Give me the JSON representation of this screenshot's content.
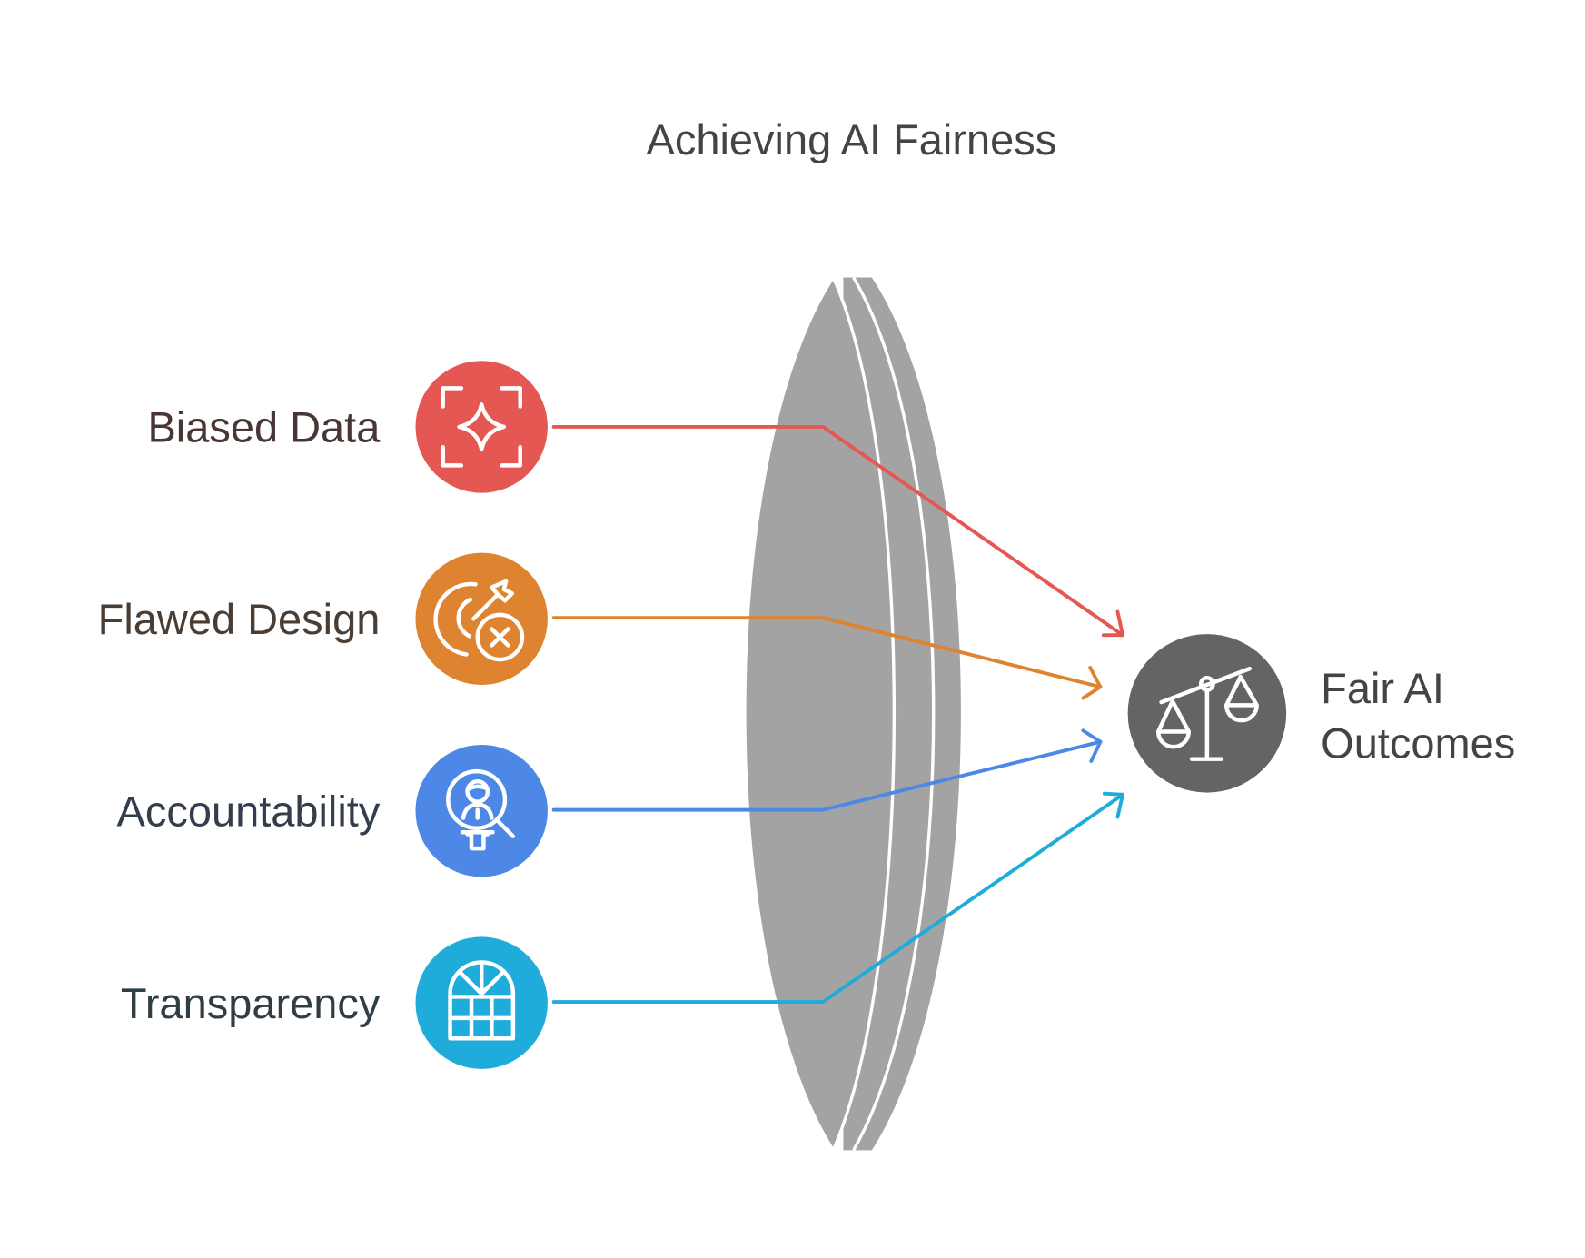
{
  "title": "Achieving AI Fairness",
  "inputs": [
    {
      "label": "Biased Data",
      "icon": "focus-sparkle-icon",
      "color": "#E55753",
      "text_color": "#4A3535"
    },
    {
      "label": "Flawed Design",
      "icon": "target-miss-icon",
      "color": "#DE8431",
      "text_color": "#4A3D33"
    },
    {
      "label": "Accountability",
      "icon": "person-magnifier-icon",
      "color": "#4E88E6",
      "text_color": "#333D4D"
    },
    {
      "label": "Transparency",
      "icon": "arched-window-icon",
      "color": "#1FACDA",
      "text_color": "#2F3D45"
    }
  ],
  "lens": {
    "icon": "lens-shape",
    "color": "#A3A3A3"
  },
  "output": {
    "line1": "Fair AI",
    "line2": "Outcomes",
    "icon": "balance-scale-icon",
    "color": "#646464"
  }
}
